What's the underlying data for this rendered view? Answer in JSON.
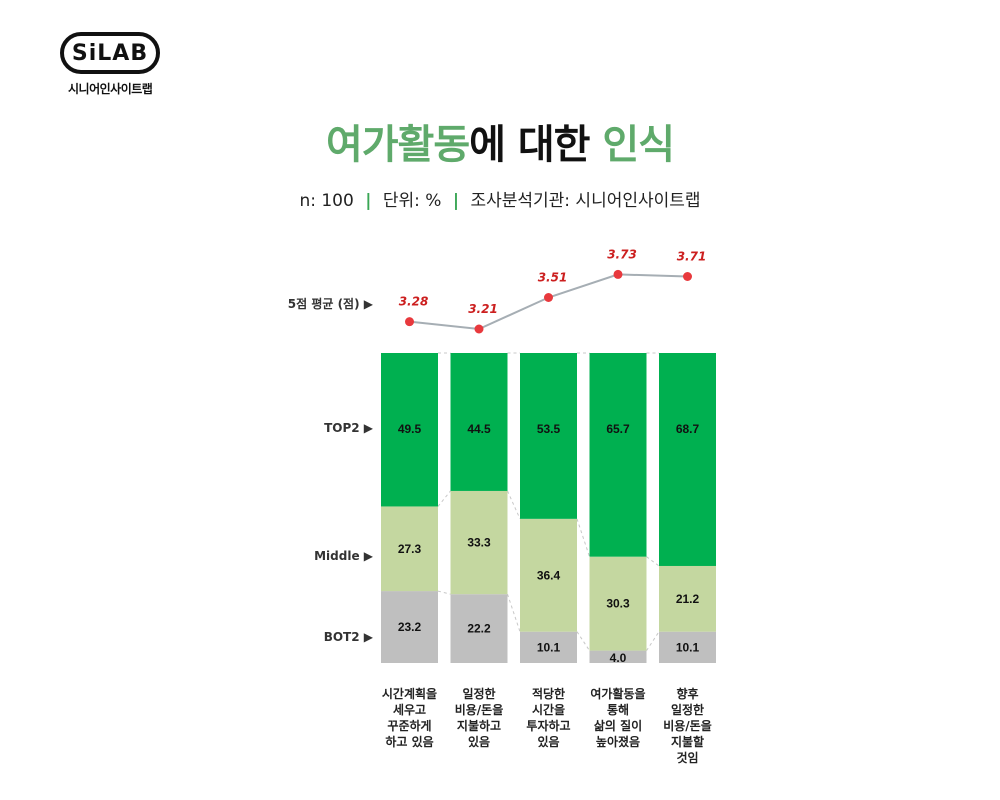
{
  "logo": {
    "badge": "SiLAB",
    "name": "시니어인사이트랩"
  },
  "header": {
    "title_part1": "여가활동",
    "title_part2": "에 대한 ",
    "title_part3": "인식",
    "n": "n: 100",
    "unit": "단위: %",
    "org": "조사분석기관: 시니어인사이트랩",
    "separator": "|"
  },
  "colors": {
    "top2": "#00b050",
    "middle": "#c4d7a0",
    "bot2": "#bfbfbf",
    "avg_point": "#e8393d",
    "avg_line": "#a6aeb4",
    "avg_label": "#cc1f1f",
    "title_green": "#5faa6b"
  },
  "chart_data": {
    "type": "bar",
    "stacked": true,
    "orientation": "vertical",
    "categories": [
      "시간계획을\n세우고\n꾸준하게\n하고 있음",
      "일정한\n비용/돈을\n지불하고\n있음",
      "적당한\n시간을\n투자하고\n있음",
      "여가활동을\n통해\n삶의 질이\n높아졌음",
      "향후\n일정한\n비용/돈을\n지불할\n것임"
    ],
    "series": [
      {
        "name": "BOT2",
        "values": [
          23.2,
          22.2,
          10.1,
          4.0,
          10.1
        ]
      },
      {
        "name": "Middle",
        "values": [
          27.3,
          33.3,
          36.4,
          30.3,
          21.2
        ]
      },
      {
        "name": "TOP2",
        "values": [
          49.5,
          44.5,
          53.5,
          65.7,
          68.7
        ]
      }
    ],
    "labels": {
      "bot2": [
        "23.2",
        "22.2",
        "10.1",
        "4.0",
        "10.1"
      ],
      "middle": [
        "27.3",
        "33.3",
        "36.4",
        "30.3",
        "21.2"
      ],
      "top2": [
        "49.5",
        "44.5",
        "53.5",
        "65.7",
        "68.7"
      ]
    },
    "ylim": [
      0,
      100
    ],
    "average": {
      "name": "5점 평균 (점)",
      "values": [
        3.28,
        3.21,
        3.51,
        3.73,
        3.71
      ],
      "labels": [
        "3.28",
        "3.21",
        "3.51",
        "3.73",
        "3.71"
      ]
    },
    "row_labels": {
      "avg": "5점 평균 (점) ▶",
      "top2": "TOP2 ▶",
      "middle": "Middle ▶",
      "bot2": "BOT2 ▶"
    },
    "grid": false,
    "legend": "left-row-labels"
  }
}
